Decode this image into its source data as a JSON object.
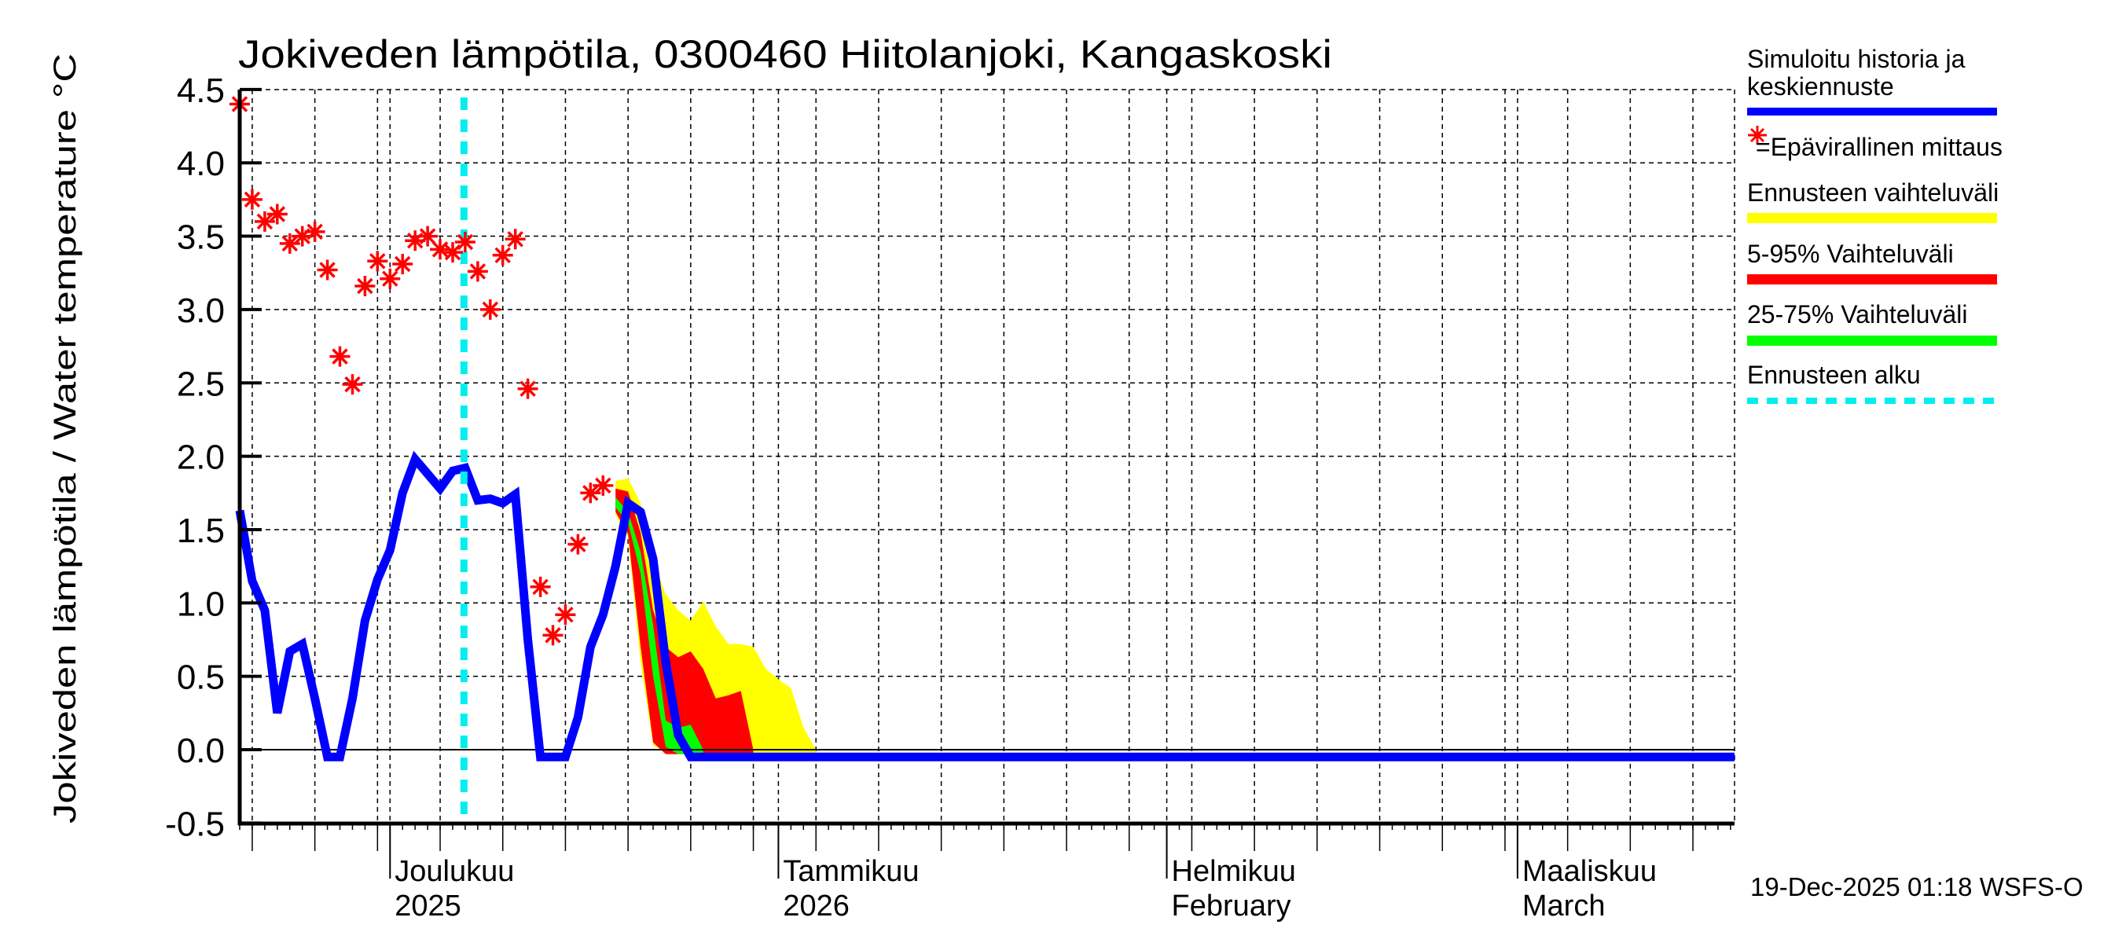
{
  "chart_data": {
    "type": "line",
    "title": "Jokiveden lämpötila, 0300460 Hiitolanjoki, Kangaskoski",
    "ylabel": "Jokiveden lämpötila / Water temperature   °C",
    "xlabel": "",
    "ylim": [
      -0.5,
      4.5
    ],
    "yticks": [
      "4.5",
      "4.0",
      "3.5",
      "3.0",
      "2.5",
      "2.0",
      "1.5",
      "1.0",
      "0.5",
      "0.0",
      "-0.5"
    ],
    "x_start": "2025-11-19",
    "x_end": "2026-03-18",
    "grid": true,
    "grid_interval_days": 5,
    "month_ticks": [
      {
        "line1": "Joulukuu",
        "line2": "2025",
        "day_index": 12
      },
      {
        "line1": "Tammikuu",
        "line2": "2026",
        "day_index": 43
      },
      {
        "line1": "Helmikuu",
        "line2": "February",
        "day_index": 74
      },
      {
        "line1": "Maaliskuu",
        "line2": "March",
        "day_index": 102
      }
    ],
    "forecast_start": {
      "date": "2025-12-19",
      "day_index": 17.9
    },
    "legend_position": "right",
    "series": [
      {
        "name": "Simuloitu historia ja keskiennuste",
        "kind": "line",
        "color": "#0000ff",
        "start_date": "2025-11-19",
        "values": [
          1.63,
          1.15,
          0.95,
          0.25,
          0.67,
          0.72,
          0.35,
          -0.05,
          -0.05,
          0.35,
          0.88,
          1.16,
          1.36,
          1.75,
          1.98,
          1.88,
          1.78,
          1.9,
          1.92,
          1.7,
          1.71,
          1.68,
          1.74,
          0.75,
          -0.05,
          -0.05,
          -0.05,
          0.22,
          0.7,
          0.92,
          1.25,
          1.68,
          1.62,
          1.3,
          0.6,
          0.1,
          -0.05
        ],
        "flat_until_end": -0.05
      },
      {
        "name": "Epävirallinen mittaus",
        "kind": "scatter",
        "marker": "asterisk",
        "color": "#ff0000",
        "points": [
          [
            0,
            4.4
          ],
          [
            1,
            3.75
          ],
          [
            2,
            3.6
          ],
          [
            3,
            3.65
          ],
          [
            4,
            3.45
          ],
          [
            5,
            3.5
          ],
          [
            6,
            3.53
          ],
          [
            7,
            3.27
          ],
          [
            8,
            2.68
          ],
          [
            9,
            2.49
          ],
          [
            10,
            3.16
          ],
          [
            11,
            3.33
          ],
          [
            12,
            3.21
          ],
          [
            13,
            3.31
          ],
          [
            14,
            3.47
          ],
          [
            15,
            3.5
          ],
          [
            16,
            3.41
          ],
          [
            17,
            3.39
          ],
          [
            18,
            3.46
          ],
          [
            19,
            3.26
          ],
          [
            20,
            3.0
          ],
          [
            21,
            3.37
          ],
          [
            22,
            3.48
          ],
          [
            23,
            2.46
          ],
          [
            24,
            1.11
          ],
          [
            25,
            0.78
          ],
          [
            26,
            0.92
          ],
          [
            27,
            1.4
          ],
          [
            28,
            1.75
          ],
          [
            29,
            1.8
          ]
        ]
      },
      {
        "name": "Ennusteen vaihteluväli",
        "kind": "band",
        "color": "#ffff00",
        "start_index": 30,
        "upper": [
          1.83,
          1.85,
          1.68,
          1.29,
          1.06,
          0.95,
          0.88,
          1.01,
          0.84,
          0.72,
          0.72,
          0.7,
          0.55,
          0.48,
          0.42,
          0.15,
          0.0
        ],
        "lower": [
          1.6,
          1.45,
          0.6,
          0.03,
          -0.02,
          -0.02,
          -0.02,
          -0.02,
          -0.02,
          -0.02,
          -0.02,
          -0.02,
          -0.02,
          -0.02,
          -0.02,
          -0.02,
          -0.02
        ]
      },
      {
        "name": "5-95% Vaihteluväli",
        "kind": "band",
        "color": "#ff0000",
        "start_index": 30,
        "upper": [
          1.78,
          1.76,
          1.48,
          0.95,
          0.7,
          0.63,
          0.67,
          0.55,
          0.35,
          0.37,
          0.4,
          0.0
        ],
        "lower": [
          1.62,
          1.47,
          0.7,
          0.05,
          -0.03,
          -0.03,
          -0.03,
          -0.03,
          -0.03,
          -0.03,
          -0.03,
          -0.03
        ]
      },
      {
        "name": "25-75% Vaihteluväli",
        "kind": "band",
        "color": "#00ff00",
        "start_index": 30,
        "upper": [
          1.72,
          1.62,
          1.35,
          0.85,
          0.2,
          0.15,
          0.17,
          0.0
        ],
        "lower": [
          1.65,
          1.55,
          1.2,
          0.5,
          0.02,
          -0.03,
          -0.03,
          -0.03
        ]
      }
    ]
  },
  "legend": {
    "items": [
      {
        "label_line1": "Simuloitu historia ja",
        "label_line2": "keskiennuste",
        "color": "#0000ff",
        "style": "solid"
      },
      {
        "label": "=Epävirallinen mittaus",
        "color": "#ff0000",
        "style": "asterisk"
      },
      {
        "label": "Ennusteen vaihteluväli",
        "color": "#ffff00",
        "style": "solid"
      },
      {
        "label": "5-95% Vaihteluväli",
        "color": "#ff0000",
        "style": "solid"
      },
      {
        "label": "25-75% Vaihteluväli",
        "color": "#00ff00",
        "style": "solid"
      },
      {
        "label": "Ennusteen alku",
        "color": "#00eeee",
        "style": "dashed"
      }
    ]
  },
  "footer": {
    "timestamp": "19-Dec-2025 01:18 WSFS-O"
  }
}
